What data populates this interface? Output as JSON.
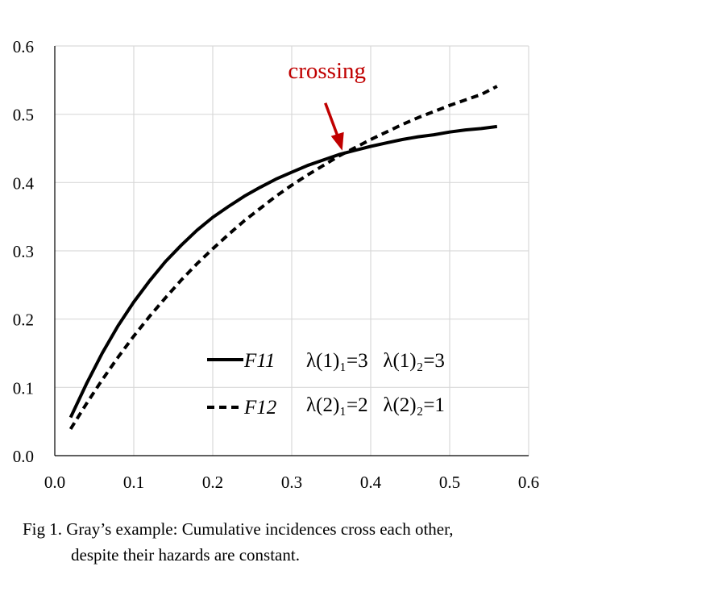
{
  "chart_data": {
    "type": "line",
    "xlim": [
      0,
      0.6
    ],
    "ylim": [
      0,
      0.6
    ],
    "xticks": [
      "0.0",
      "0.1",
      "0.2",
      "0.3",
      "0.4",
      "0.5",
      "0.6"
    ],
    "yticks": [
      "0.0",
      "0.1",
      "0.2",
      "0.3",
      "0.4",
      "0.5",
      "0.6"
    ],
    "grid": true,
    "legend_position": "bottom-center-inside",
    "series": [
      {
        "name": "F11",
        "params": "λ(1)₁=3   λ(1)₂=3",
        "style": "solid",
        "x": [
          0.02,
          0.04,
          0.06,
          0.08,
          0.1,
          0.12,
          0.14,
          0.16,
          0.18,
          0.2,
          0.22,
          0.24,
          0.26,
          0.28,
          0.3,
          0.32,
          0.34,
          0.36,
          0.38,
          0.4,
          0.42,
          0.44,
          0.46,
          0.48,
          0.5,
          0.52,
          0.54,
          0.56
        ],
        "y": [
          0.056,
          0.105,
          0.15,
          0.19,
          0.225,
          0.256,
          0.284,
          0.308,
          0.33,
          0.349,
          0.365,
          0.38,
          0.393,
          0.405,
          0.415,
          0.425,
          0.433,
          0.441,
          0.447,
          0.453,
          0.458,
          0.463,
          0.467,
          0.47,
          0.474,
          0.477,
          0.479,
          0.482
        ]
      },
      {
        "name": "F12",
        "params": "λ(2)₁=2   λ(2)₂=1",
        "style": "dashed",
        "x": [
          0.02,
          0.04,
          0.06,
          0.08,
          0.1,
          0.12,
          0.14,
          0.16,
          0.18,
          0.2,
          0.22,
          0.24,
          0.26,
          0.28,
          0.3,
          0.32,
          0.34,
          0.36,
          0.38,
          0.4,
          0.42,
          0.44,
          0.46,
          0.48,
          0.5,
          0.52,
          0.54,
          0.56
        ],
        "y": [
          0.039,
          0.076,
          0.111,
          0.144,
          0.175,
          0.204,
          0.231,
          0.257,
          0.281,
          0.303,
          0.324,
          0.344,
          0.362,
          0.38,
          0.396,
          0.411,
          0.425,
          0.439,
          0.451,
          0.463,
          0.474,
          0.485,
          0.495,
          0.504,
          0.513,
          0.521,
          0.529,
          0.541
        ]
      }
    ],
    "annotation": {
      "text": "crossing",
      "x": 0.365,
      "y": 0.442,
      "color": "#c00000"
    }
  },
  "caption": {
    "line1": "Fig 1. Gray’s example: Cumulative incidences cross each other,",
    "line2": "despite their hazards are constant."
  }
}
